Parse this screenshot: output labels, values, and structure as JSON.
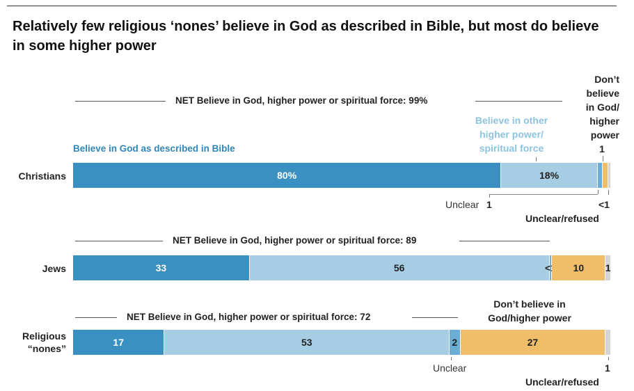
{
  "title": "Relatively few religious ‘nones’ believe in God as described in Bible, but most do believe in some higher power",
  "colors": {
    "bible": "#3a90c1",
    "other": "#a6cde3",
    "unclear": "#6aaed6",
    "dont": "#f0bd68",
    "refused": "#d5d5d5"
  },
  "chart_data": {
    "type": "bar",
    "orientation": "horizontal",
    "stacked": true,
    "categories": [
      "Christians",
      "Jews",
      "Religious “nones”"
    ],
    "series": [
      {
        "name": "Believe in God as described in Bible",
        "values": [
          80,
          33,
          17
        ],
        "labels": [
          "80%",
          "33",
          "17"
        ]
      },
      {
        "name": "Believe in other higher power/spiritual force",
        "values": [
          18,
          56,
          53
        ],
        "labels": [
          "18%",
          "56",
          "53"
        ]
      },
      {
        "name": "Unclear",
        "values": [
          1,
          0.5,
          2
        ],
        "labels": [
          "",
          "<1",
          "2"
        ]
      },
      {
        "name": "Don't believe in God/higher power",
        "values": [
          1,
          10,
          27
        ],
        "labels": [
          "",
          "10",
          "27"
        ]
      },
      {
        "name": "Unclear/refused",
        "values": [
          0.5,
          1,
          1
        ],
        "labels": [
          "",
          "1",
          ""
        ]
      }
    ],
    "net": [
      "NET Believe in God, higher power or spiritual force: 99%",
      "NET Believe in God, higher power or spiritual force: 89",
      "NET Believe in God, higher power or spiritual force: 72"
    ]
  },
  "annotations": {
    "bible": "Believe in God as described in Bible",
    "other": "Believe in other higher power/ spiritual force",
    "dont_christ": "Don’t believe in God/ higher power",
    "dont_christ_val": "1",
    "unclear_christ": "Unclear",
    "unclear_christ_val": "1",
    "refused_christ_val": "<1",
    "refused": "Unclear/refused",
    "dont_nones": "Don’t believe in God/higher power",
    "unclear_nones": "Unclear",
    "refused_nones_val": "1",
    "refused_nones": "Unclear/refused"
  }
}
